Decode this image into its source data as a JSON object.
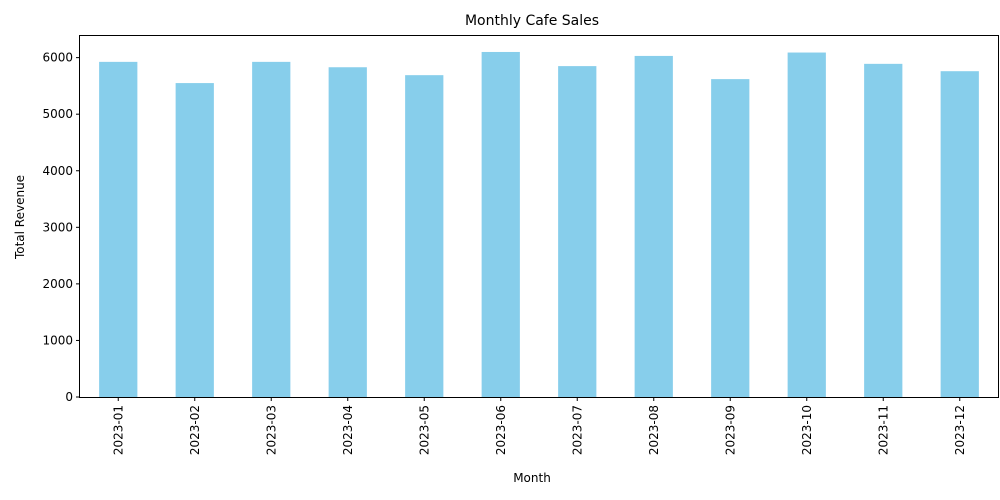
{
  "chart_data": {
    "type": "bar",
    "title": "Monthly Cafe Sales",
    "xlabel": "Month",
    "ylabel": "Total Revenue",
    "categories": [
      "2023-01",
      "2023-02",
      "2023-03",
      "2023-04",
      "2023-05",
      "2023-06",
      "2023-07",
      "2023-08",
      "2023-09",
      "2023-10",
      "2023-11",
      "2023-12"
    ],
    "values": [
      5925,
      5550,
      5925,
      5830,
      5690,
      6100,
      5850,
      6030,
      5620,
      6090,
      5890,
      5760
    ],
    "ylim": [
      0,
      6400
    ],
    "yticks": [
      0,
      1000,
      2000,
      3000,
      4000,
      5000,
      6000
    ],
    "grid": false,
    "legend": "none",
    "bar_color": "#87ceeb"
  }
}
